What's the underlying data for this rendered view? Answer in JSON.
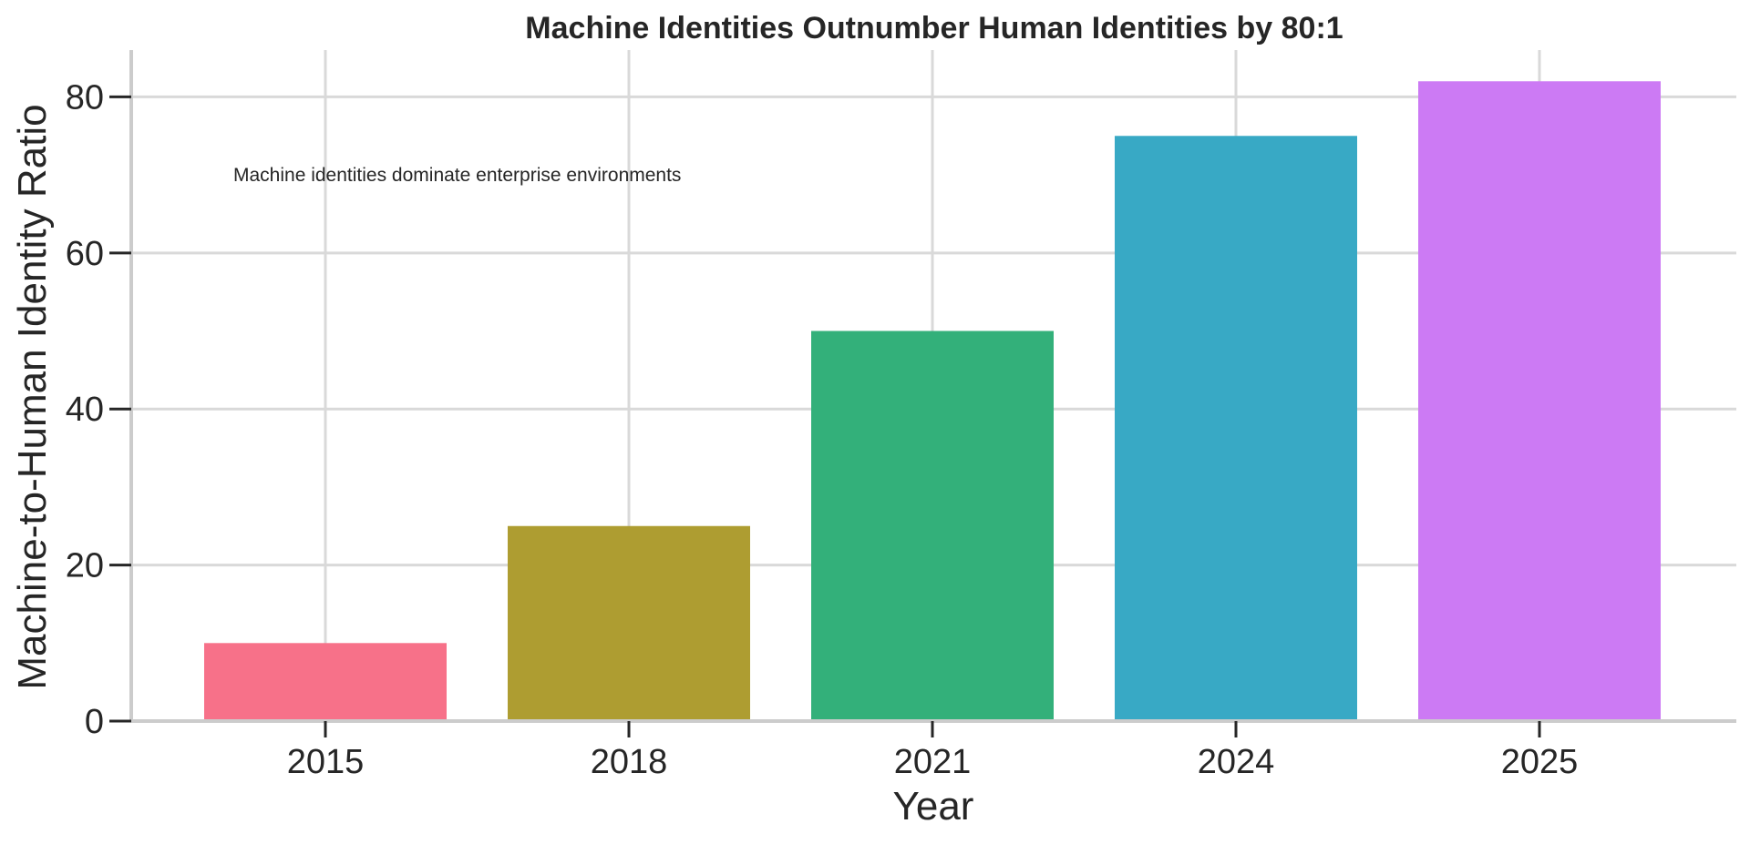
{
  "chart_data": {
    "type": "bar",
    "title": "Machine Identities Outnumber Human Identities by 80:1",
    "xlabel": "Year",
    "ylabel": "Machine-to-Human Identity Ratio",
    "categories": [
      "2015",
      "2018",
      "2021",
      "2024",
      "2025"
    ],
    "values": [
      10,
      25,
      50,
      75,
      82
    ],
    "colors": [
      "#f77189",
      "#ae9d31",
      "#33b07a",
      "#38a9c5",
      "#cc7af4"
    ],
    "ylim": [
      0,
      86
    ],
    "yticks": [
      0,
      20,
      40,
      60,
      80
    ],
    "grid": true,
    "annotation": "Machine identities dominate enterprise environments",
    "annotation_anchor": {
      "x": "2015",
      "y": 70
    }
  }
}
